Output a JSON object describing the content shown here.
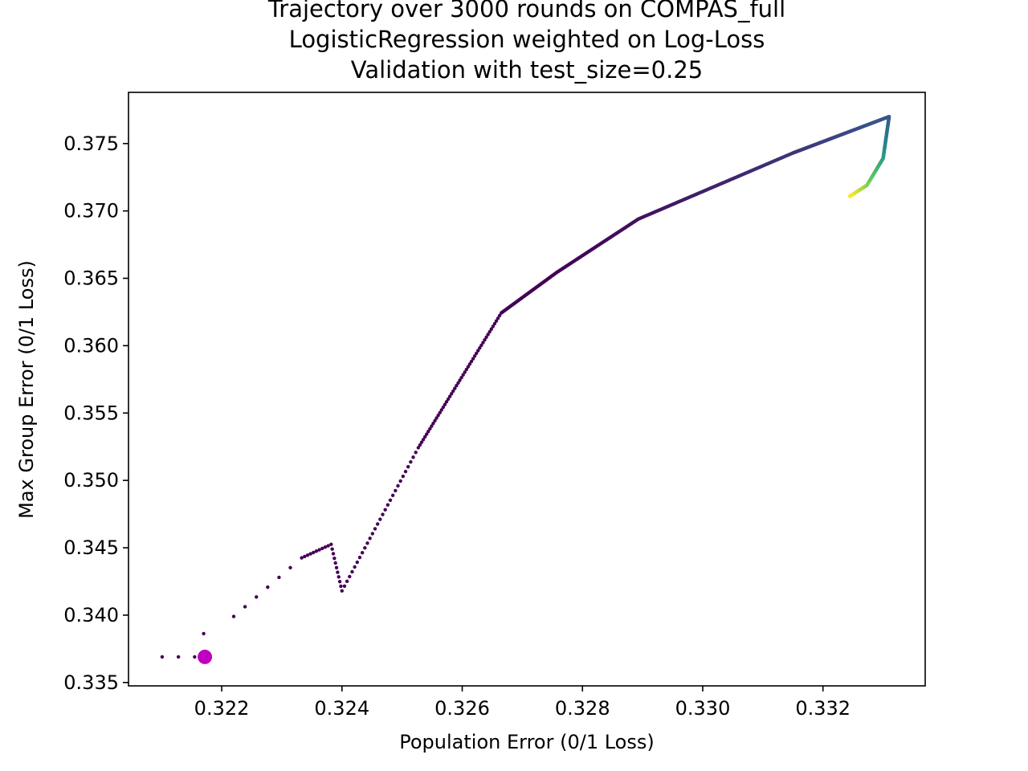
{
  "chart_data": {
    "type": "scatter",
    "title_lines": [
      "Trajectory over 3000 rounds on COMPAS_full",
      "LogisticRegression weighted on Log-Loss",
      "Validation with test_size=0.25"
    ],
    "xlabel": "Population Error (0/1 Loss)",
    "ylabel": "Max Group Error (0/1 Loss)",
    "xlim": [
      0.32045,
      0.3337
    ],
    "ylim": [
      0.33475,
      0.3788
    ],
    "xticks": [
      "0.322",
      "0.324",
      "0.326",
      "0.328",
      "0.330",
      "0.332"
    ],
    "yticks": [
      "0.335",
      "0.340",
      "0.345",
      "0.350",
      "0.355",
      "0.360",
      "0.365",
      "0.370",
      "0.375"
    ],
    "grid": false,
    "colormap": "viridis",
    "color_encodes": "round",
    "trajectory_waypoints": [
      {
        "x": 0.32101,
        "y": 0.3369
      },
      {
        "x": 0.32155,
        "y": 0.3369
      },
      {
        "x": 0.3217,
        "y": 0.33863
      },
      {
        "x": 0.3222,
        "y": 0.3399
      },
      {
        "x": 0.32333,
        "y": 0.34425
      },
      {
        "x": 0.32382,
        "y": 0.34525
      },
      {
        "x": 0.324,
        "y": 0.3418
      },
      {
        "x": 0.32527,
        "y": 0.35243
      },
      {
        "x": 0.32665,
        "y": 0.36243
      },
      {
        "x": 0.32757,
        "y": 0.36543
      },
      {
        "x": 0.32893,
        "y": 0.3694
      },
      {
        "x": 0.3315,
        "y": 0.3743
      },
      {
        "x": 0.3331,
        "y": 0.377
      },
      {
        "x": 0.333,
        "y": 0.3739
      },
      {
        "x": 0.33273,
        "y": 0.3719
      },
      {
        "x": 0.33245,
        "y": 0.3711
      }
    ],
    "final_point": {
      "x": 0.32172,
      "y": 0.3369,
      "color": "#c000c0"
    }
  }
}
